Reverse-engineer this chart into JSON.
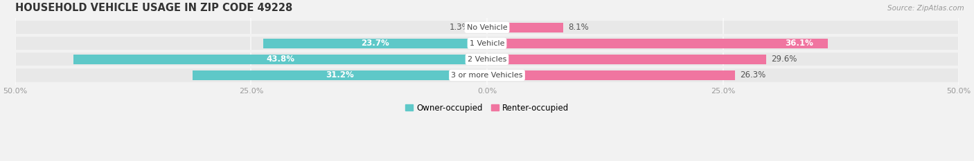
{
  "title": "HOUSEHOLD VEHICLE USAGE IN ZIP CODE 49228",
  "source": "Source: ZipAtlas.com",
  "categories": [
    "No Vehicle",
    "1 Vehicle",
    "2 Vehicles",
    "3 or more Vehicles"
  ],
  "owner_values": [
    1.3,
    23.7,
    43.8,
    31.2
  ],
  "renter_values": [
    8.1,
    36.1,
    29.6,
    26.3
  ],
  "owner_color": "#5ec8c8",
  "renter_color": "#f075a0",
  "background_color": "#f2f2f2",
  "bar_bg_color": "#e8e8e8",
  "legend_labels": [
    "Owner-occupied",
    "Renter-occupied"
  ],
  "title_fontsize": 10.5,
  "label_fontsize": 8.5,
  "tick_fontsize": 8.0,
  "xtick_values": [
    -50,
    -25,
    0,
    25,
    50
  ]
}
